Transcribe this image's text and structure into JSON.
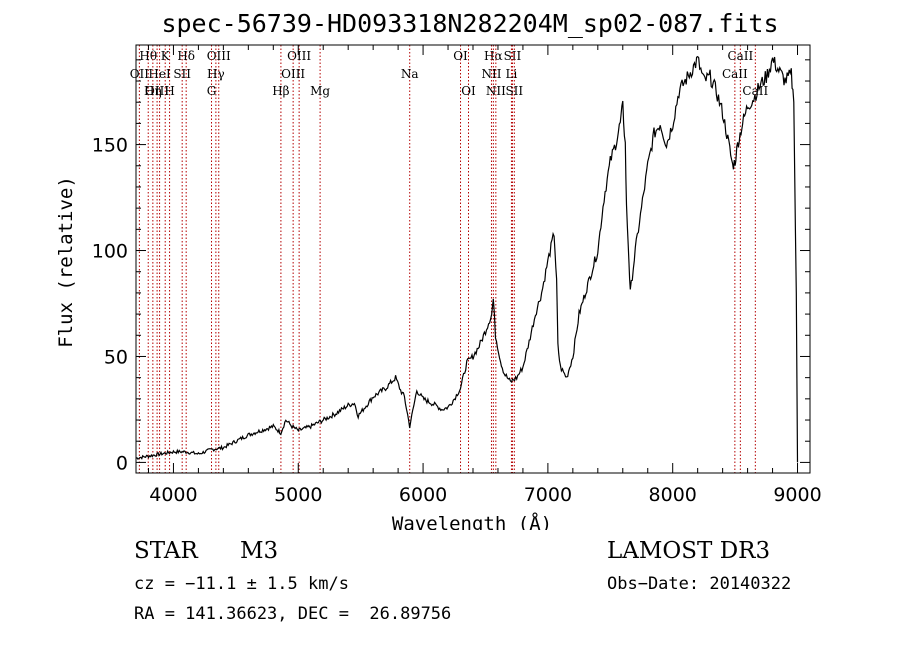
{
  "chart_data": {
    "type": "line",
    "title": "spec-56739-HD093318N282204M_sp02-087.fits",
    "xlabel": "Wavelength (Å)",
    "ylabel": "Flux (relative)",
    "xlim": [
      3700,
      9100
    ],
    "ylim": [
      -5,
      197
    ],
    "xticks": [
      4000,
      5000,
      6000,
      7000,
      8000,
      9000
    ],
    "yticks": [
      0,
      50,
      100,
      150
    ],
    "series": [
      {
        "name": "flux",
        "x": [
          3700,
          3800,
          3900,
          4000,
          4100,
          4200,
          4300,
          4400,
          4500,
          4600,
          4700,
          4800,
          4860,
          4900,
          4950,
          5000,
          5100,
          5200,
          5300,
          5400,
          5450,
          5480,
          5600,
          5700,
          5780,
          5820,
          5850,
          5893,
          5950,
          6000,
          6100,
          6150,
          6200,
          6250,
          6300,
          6350,
          6400,
          6450,
          6500,
          6550,
          6563,
          6580,
          6620,
          6650,
          6700,
          6750,
          6800,
          6850,
          6900,
          6950,
          7000,
          7050,
          7070,
          7080,
          7100,
          7150,
          7200,
          7250,
          7350,
          7400,
          7450,
          7500,
          7550,
          7580,
          7600,
          7620,
          7630,
          7650,
          7660,
          7700,
          7750,
          7800,
          7850,
          7900,
          7950,
          8000,
          8050,
          8100,
          8150,
          8200,
          8250,
          8300,
          8350,
          8400,
          8450,
          8480,
          8500,
          8520,
          8540,
          8560,
          8600,
          8650,
          8700,
          8750,
          8800,
          8850,
          8900,
          8950,
          8970,
          8990,
          9000
        ],
        "y": [
          2,
          3,
          4,
          5,
          5,
          4,
          6,
          7,
          10,
          13,
          15,
          17,
          14,
          20,
          17,
          15,
          17,
          20,
          23,
          27,
          28,
          22,
          31,
          35,
          40,
          34,
          31,
          17,
          34,
          30,
          27,
          25,
          26,
          30,
          35,
          47,
          50,
          55,
          62,
          70,
          77,
          60,
          48,
          42,
          38,
          40,
          45,
          57,
          70,
          80,
          95,
          108,
          85,
          55,
          45,
          40,
          50,
          70,
          90,
          100,
          125,
          142,
          152,
          160,
          168,
          150,
          120,
          95,
          80,
          100,
          120,
          140,
          155,
          160,
          150,
          160,
          175,
          180,
          185,
          190,
          180,
          182,
          175,
          165,
          150,
          140,
          142,
          150,
          155,
          160,
          168,
          172,
          178,
          182,
          190,
          185,
          180,
          183,
          170,
          80,
          0
        ]
      }
    ],
    "lines": [
      {
        "label": "Hθ",
        "wavelength": 3798,
        "row": 1
      },
      {
        "label": "OII",
        "wavelength": 3727,
        "row": 2
      },
      {
        "label": "OIII",
        "wavelength": 3869,
        "row": 3
      },
      {
        "label": "K",
        "wavelength": 3934,
        "row": 1
      },
      {
        "label": "HeI",
        "wavelength": 3889,
        "row": 2
      },
      {
        "label": "Hη",
        "wavelength": 3835,
        "row": 3
      },
      {
        "label": "H",
        "wavelength": 3969,
        "row": 3
      },
      {
        "label": "Hδ",
        "wavelength": 4102,
        "row": 1
      },
      {
        "label": "SII",
        "wavelength": 4070,
        "row": 2
      },
      {
        "label": "OIII",
        "wavelength": 4363,
        "row": 1
      },
      {
        "label": "Hγ",
        "wavelength": 4340,
        "row": 2
      },
      {
        "label": "G",
        "wavelength": 4305,
        "row": 3
      },
      {
        "label": "Hβ",
        "wavelength": 4861,
        "row": 3
      },
      {
        "label": "OIII",
        "wavelength": 5007,
        "row": 1
      },
      {
        "label": "OIII",
        "wavelength": 4959,
        "row": 2
      },
      {
        "label": "Mg",
        "wavelength": 5175,
        "row": 3
      },
      {
        "label": "Na",
        "wavelength": 5893,
        "row": 2
      },
      {
        "label": "OI",
        "wavelength": 6300,
        "row": 1
      },
      {
        "label": "OI",
        "wavelength": 6364,
        "row": 3
      },
      {
        "label": "Hα",
        "wavelength": 6563,
        "row": 1
      },
      {
        "label": "NII",
        "wavelength": 6548,
        "row": 2
      },
      {
        "label": "NII",
        "wavelength": 6583,
        "row": 3
      },
      {
        "label": "SII",
        "wavelength": 6716,
        "row": 1
      },
      {
        "label": "Li",
        "wavelength": 6708,
        "row": 2
      },
      {
        "label": "SII",
        "wavelength": 6731,
        "row": 3
      },
      {
        "label": "CaII",
        "wavelength": 8542,
        "row": 1
      },
      {
        "label": "CaII",
        "wavelength": 8498,
        "row": 2
      },
      {
        "label": "CaII",
        "wavelength": 8662,
        "row": 3
      }
    ]
  },
  "info": {
    "class": "STAR",
    "subclass": "M3",
    "survey": "LAMOST DR3",
    "cz": "cz = −11.1 ± 1.5 km/s",
    "obs_date": "Obs−Date: 20140322",
    "coords": "RA = 141.36623, DEC =  26.89756"
  },
  "colors": {
    "spectrum": "#000000",
    "lines": "#b40000",
    "axes": "#000000"
  }
}
